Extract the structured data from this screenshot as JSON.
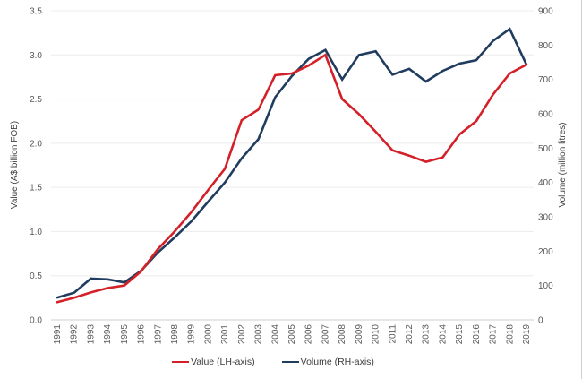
{
  "chart_data": {
    "type": "line",
    "title": "",
    "x": [
      1991,
      1992,
      1993,
      1994,
      1995,
      1996,
      1997,
      1998,
      1999,
      2000,
      2001,
      2002,
      2003,
      2004,
      2005,
      2006,
      2007,
      2008,
      2009,
      2010,
      2011,
      2012,
      2013,
      2014,
      2015,
      2016,
      2017,
      2018,
      2019
    ],
    "series": [
      {
        "name": "Value (LH-axis)",
        "axis": "left",
        "color": "#d42028",
        "values": [
          0.2,
          0.25,
          0.31,
          0.36,
          0.39,
          0.55,
          0.8,
          1.0,
          1.22,
          1.47,
          1.71,
          2.26,
          2.38,
          2.77,
          2.79,
          2.88,
          3.0,
          2.5,
          2.33,
          2.13,
          1.92,
          1.86,
          1.79,
          1.84,
          2.1,
          2.25,
          2.55,
          2.79,
          2.89
        ]
      },
      {
        "name": "Volume (RH-axis)",
        "axis": "right",
        "color": "#203c5e",
        "values": [
          65,
          79,
          120,
          118,
          109,
          143,
          196,
          240,
          287,
          344,
          400,
          470,
          526,
          648,
          710,
          760,
          786,
          700,
          771,
          782,
          714,
          731,
          694,
          725,
          746,
          756,
          812,
          847,
          743
        ]
      }
    ],
    "left_axis": {
      "label": "Value (A$ billion FOB)",
      "min": 0,
      "max": 3.5,
      "step": 0.5,
      "tick_labels": [
        "0.0",
        "0.5",
        "1.0",
        "1.5",
        "2.0",
        "2.5",
        "3.0",
        "3.5"
      ]
    },
    "right_axis": {
      "label": "Volume (million litres)",
      "min": 0,
      "max": 900,
      "step": 100,
      "tick_labels": [
        "0",
        "100",
        "200",
        "300",
        "400",
        "500",
        "600",
        "700",
        "800",
        "900"
      ]
    },
    "grid": "horizontal-left-ticks-only",
    "gridline_color": "#ececec",
    "baseline_color": "#cfcfcf",
    "legend_position": "bottom-center",
    "x_tick_rotation": -90
  }
}
